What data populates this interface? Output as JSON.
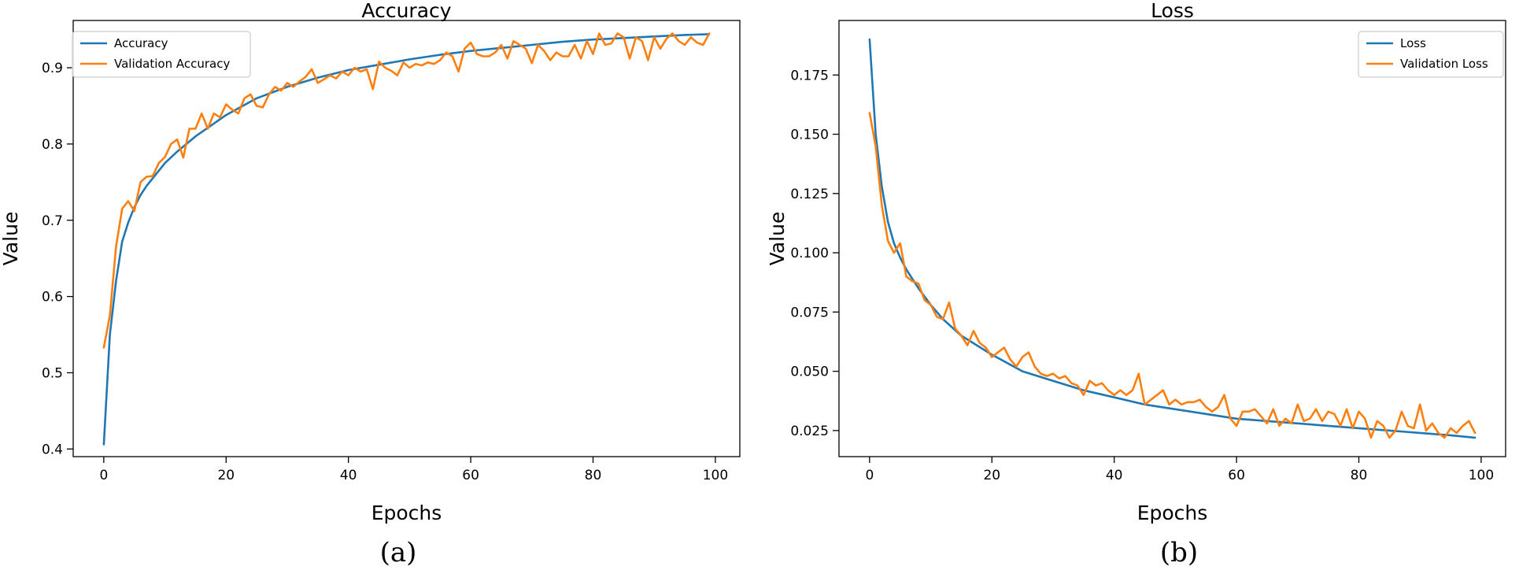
{
  "captions": [
    "(a)",
    "(b)"
  ],
  "colors": {
    "series1": "#1f77b4",
    "series2": "#ff7f0e",
    "axis": "#000000"
  },
  "chart_data": [
    {
      "type": "line",
      "title": "Accuracy",
      "xlabel": "Epochs",
      "ylabel": "Value",
      "xlim": [
        -5,
        104
      ],
      "ylim": [
        0.39,
        0.962
      ],
      "xticks": [
        0,
        20,
        40,
        60,
        80,
        100
      ],
      "yticks": [
        0.4,
        0.5,
        0.6,
        0.7,
        0.8,
        0.9
      ],
      "ytick_labels": [
        "0.4",
        "0.5",
        "0.6",
        "0.7",
        "0.8",
        "0.9"
      ],
      "legend_position": "top-left",
      "grid": false,
      "series": [
        {
          "name": "Accuracy",
          "x": [
            0,
            1,
            2,
            3,
            4,
            5,
            6,
            7,
            8,
            9,
            10,
            12,
            15,
            20,
            25,
            30,
            35,
            40,
            45,
            50,
            55,
            60,
            65,
            70,
            75,
            80,
            85,
            90,
            95,
            99
          ],
          "y": [
            0.406,
            0.55,
            0.62,
            0.672,
            0.697,
            0.717,
            0.733,
            0.745,
            0.755,
            0.765,
            0.775,
            0.79,
            0.81,
            0.838,
            0.86,
            0.875,
            0.887,
            0.897,
            0.904,
            0.911,
            0.917,
            0.922,
            0.926,
            0.93,
            0.934,
            0.937,
            0.939,
            0.941,
            0.943,
            0.944
          ]
        },
        {
          "name": "Validation Accuracy",
          "x": [
            0,
            1,
            2,
            3,
            4,
            5,
            6,
            7,
            8,
            9,
            10,
            11,
            12,
            13,
            14,
            15,
            16,
            17,
            18,
            19,
            20,
            21,
            22,
            23,
            24,
            25,
            26,
            27,
            28,
            29,
            30,
            31,
            32,
            33,
            34,
            35,
            36,
            37,
            38,
            39,
            40,
            41,
            42,
            43,
            44,
            45,
            46,
            47,
            48,
            49,
            50,
            51,
            52,
            53,
            54,
            55,
            56,
            57,
            58,
            59,
            60,
            61,
            62,
            63,
            64,
            65,
            66,
            67,
            68,
            69,
            70,
            71,
            72,
            73,
            74,
            75,
            76,
            77,
            78,
            79,
            80,
            81,
            82,
            83,
            84,
            85,
            86,
            87,
            88,
            89,
            90,
            91,
            92,
            93,
            94,
            95,
            96,
            97,
            98,
            99
          ],
          "y": [
            0.533,
            0.575,
            0.665,
            0.715,
            0.725,
            0.712,
            0.75,
            0.757,
            0.758,
            0.775,
            0.783,
            0.8,
            0.806,
            0.782,
            0.82,
            0.82,
            0.84,
            0.82,
            0.84,
            0.835,
            0.852,
            0.845,
            0.84,
            0.86,
            0.865,
            0.85,
            0.848,
            0.865,
            0.875,
            0.87,
            0.88,
            0.875,
            0.882,
            0.888,
            0.898,
            0.88,
            0.885,
            0.89,
            0.886,
            0.895,
            0.89,
            0.9,
            0.895,
            0.898,
            0.872,
            0.908,
            0.9,
            0.896,
            0.89,
            0.907,
            0.9,
            0.905,
            0.903,
            0.907,
            0.905,
            0.91,
            0.92,
            0.915,
            0.895,
            0.925,
            0.933,
            0.918,
            0.915,
            0.915,
            0.92,
            0.93,
            0.912,
            0.935,
            0.93,
            0.925,
            0.906,
            0.93,
            0.922,
            0.91,
            0.92,
            0.915,
            0.915,
            0.93,
            0.912,
            0.935,
            0.918,
            0.945,
            0.93,
            0.932,
            0.945,
            0.94,
            0.912,
            0.94,
            0.935,
            0.91,
            0.94,
            0.925,
            0.938,
            0.945,
            0.935,
            0.93,
            0.94,
            0.933,
            0.93,
            0.945
          ]
        }
      ]
    },
    {
      "type": "line",
      "title": "Loss",
      "xlabel": "Epochs",
      "ylabel": "Value",
      "xlim": [
        -5,
        104
      ],
      "ylim": [
        0.014,
        0.198
      ],
      "xticks": [
        0,
        20,
        40,
        60,
        80,
        100
      ],
      "yticks": [
        0.025,
        0.05,
        0.075,
        0.1,
        0.125,
        0.15,
        0.175
      ],
      "ytick_labels": [
        "0.025",
        "0.050",
        "0.075",
        "0.100",
        "0.125",
        "0.150",
        "0.175"
      ],
      "legend_position": "top-right",
      "grid": false,
      "series": [
        {
          "name": "Loss",
          "x": [
            0,
            1,
            2,
            3,
            4,
            5,
            6,
            7,
            8,
            10,
            12,
            15,
            20,
            25,
            30,
            35,
            40,
            45,
            50,
            55,
            60,
            65,
            70,
            75,
            80,
            85,
            90,
            95,
            99
          ],
          "y": [
            0.19,
            0.15,
            0.128,
            0.113,
            0.104,
            0.098,
            0.093,
            0.089,
            0.085,
            0.078,
            0.072,
            0.065,
            0.057,
            0.05,
            0.046,
            0.042,
            0.039,
            0.036,
            0.034,
            0.032,
            0.03,
            0.029,
            0.028,
            0.027,
            0.026,
            0.025,
            0.024,
            0.023,
            0.022
          ]
        },
        {
          "name": "Validation Loss",
          "x": [
            0,
            1,
            2,
            3,
            4,
            5,
            6,
            7,
            8,
            9,
            10,
            11,
            12,
            13,
            14,
            15,
            16,
            17,
            18,
            19,
            20,
            21,
            22,
            23,
            24,
            25,
            26,
            27,
            28,
            29,
            30,
            31,
            32,
            33,
            34,
            35,
            36,
            37,
            38,
            39,
            40,
            41,
            42,
            43,
            44,
            45,
            46,
            47,
            48,
            49,
            50,
            51,
            52,
            53,
            54,
            55,
            56,
            57,
            58,
            59,
            60,
            61,
            62,
            63,
            64,
            65,
            66,
            67,
            68,
            69,
            70,
            71,
            72,
            73,
            74,
            75,
            76,
            77,
            78,
            79,
            80,
            81,
            82,
            83,
            84,
            85,
            86,
            87,
            88,
            89,
            90,
            91,
            92,
            93,
            94,
            95,
            96,
            97,
            98,
            99
          ],
          "y": [
            0.159,
            0.145,
            0.12,
            0.105,
            0.1,
            0.104,
            0.09,
            0.088,
            0.087,
            0.08,
            0.078,
            0.073,
            0.072,
            0.079,
            0.068,
            0.065,
            0.061,
            0.067,
            0.062,
            0.06,
            0.056,
            0.058,
            0.06,
            0.055,
            0.052,
            0.056,
            0.058,
            0.052,
            0.049,
            0.048,
            0.049,
            0.047,
            0.048,
            0.045,
            0.044,
            0.04,
            0.046,
            0.044,
            0.045,
            0.042,
            0.04,
            0.042,
            0.04,
            0.042,
            0.049,
            0.036,
            0.038,
            0.04,
            0.042,
            0.036,
            0.038,
            0.036,
            0.037,
            0.037,
            0.038,
            0.035,
            0.033,
            0.035,
            0.04,
            0.03,
            0.027,
            0.033,
            0.033,
            0.034,
            0.031,
            0.028,
            0.034,
            0.027,
            0.03,
            0.028,
            0.036,
            0.029,
            0.03,
            0.034,
            0.029,
            0.033,
            0.032,
            0.027,
            0.034,
            0.026,
            0.033,
            0.03,
            0.022,
            0.029,
            0.027,
            0.022,
            0.025,
            0.033,
            0.027,
            0.026,
            0.036,
            0.025,
            0.028,
            0.024,
            0.022,
            0.026,
            0.024,
            0.027,
            0.029,
            0.024
          ]
        }
      ]
    }
  ]
}
